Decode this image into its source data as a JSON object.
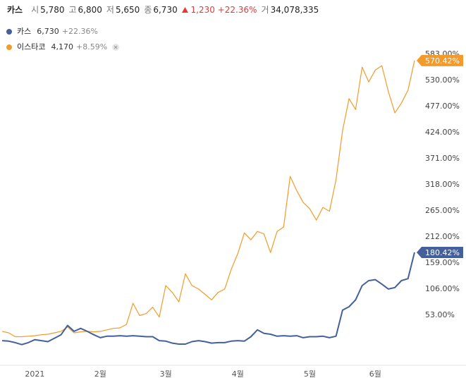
{
  "header": {
    "name": "카스",
    "stats": [
      {
        "label": "시",
        "value": "5,780"
      },
      {
        "label": "고",
        "value": "6,800"
      },
      {
        "label": "저",
        "value": "5,650"
      },
      {
        "label": "종",
        "value": "6,730"
      }
    ],
    "change": "1,230",
    "change_pct": "+22.36%",
    "volume_label": "거",
    "volume": "34,078,335"
  },
  "chart_data": {
    "type": "line",
    "categories": [
      null,
      null,
      null,
      null,
      null,
      "2021",
      null,
      null,
      null,
      null,
      null,
      null,
      null,
      null,
      null,
      "2월",
      null,
      null,
      null,
      null,
      null,
      null,
      null,
      null,
      null,
      "3월",
      null,
      null,
      null,
      null,
      null,
      null,
      null,
      null,
      null,
      null,
      "4월",
      null,
      null,
      null,
      null,
      null,
      null,
      null,
      null,
      null,
      null,
      "5월",
      null,
      null,
      null,
      null,
      null,
      null,
      null,
      null,
      null,
      "6월",
      null,
      null,
      null,
      null,
      null,
      null
    ],
    "series": [
      {
        "name": "이스타코",
        "legend_price": "4,170",
        "legend_change": "+8.59%",
        "color": "#f39a2b",
        "values": [
          20,
          17,
          9,
          9,
          10,
          11,
          13,
          14,
          17,
          20,
          29,
          17,
          19,
          20,
          19,
          20,
          23,
          26,
          27,
          34,
          77,
          52,
          56,
          69,
          49,
          113,
          99,
          80,
          137,
          113,
          106,
          95,
          84,
          99,
          106,
          146,
          178,
          220,
          206,
          223,
          218,
          180,
          223,
          232,
          335,
          306,
          282,
          269,
          246,
          272,
          264,
          328,
          428,
          493,
          471,
          557,
          527,
          551,
          560,
          507,
          464,
          484,
          510,
          570.42
        ],
        "value_labels": [
          null,
          null,
          null,
          null,
          null,
          null,
          null,
          null,
          null,
          null,
          null,
          null,
          null,
          null,
          null,
          null,
          null,
          null,
          null,
          null,
          null,
          null,
          null,
          null,
          null,
          null,
          null,
          null,
          null,
          null,
          null,
          null,
          null,
          null,
          null,
          null,
          null,
          null,
          null,
          null,
          null,
          null,
          null,
          null,
          null,
          null,
          null,
          null,
          null,
          null,
          null,
          null,
          null,
          null,
          null,
          null,
          null,
          null,
          null,
          null,
          null,
          null,
          null,
          "570.42%"
        ]
      },
      {
        "name": "카스",
        "legend_price": "6,730",
        "legend_change": "+22.36%",
        "color": "#44609c",
        "values": [
          1,
          0,
          -3,
          -7,
          -3,
          3,
          1,
          -1,
          6,
          13,
          32,
          20,
          26,
          20,
          13,
          7,
          10,
          10,
          11,
          10,
          11,
          10,
          9,
          9,
          1,
          0,
          -4,
          -6,
          -6,
          -1,
          1,
          -1,
          -4,
          -3,
          -3,
          0,
          1,
          0,
          9,
          23,
          16,
          14,
          10,
          11,
          10,
          11,
          7,
          9,
          9,
          10,
          7,
          10,
          63,
          70,
          84,
          113,
          123,
          125,
          116,
          106,
          109,
          123,
          127,
          180.42
        ],
        "value_labels": [
          null,
          null,
          null,
          null,
          null,
          null,
          null,
          null,
          null,
          null,
          null,
          null,
          null,
          null,
          null,
          null,
          null,
          null,
          null,
          null,
          null,
          null,
          null,
          null,
          null,
          null,
          null,
          null,
          null,
          null,
          null,
          null,
          null,
          null,
          null,
          null,
          null,
          null,
          null,
          null,
          null,
          null,
          null,
          null,
          null,
          null,
          null,
          null,
          null,
          null,
          null,
          null,
          null,
          null,
          null,
          null,
          null,
          null,
          null,
          null,
          null,
          null,
          null,
          "180.42%"
        ]
      }
    ],
    "ylim": [
      -49,
      586
    ],
    "yticks": [
      {
        "value": 53,
        "label": "53.00%"
      },
      {
        "value": 106,
        "label": "106.00%"
      },
      {
        "value": 159,
        "label": "159.00%"
      },
      {
        "value": 212,
        "label": "212.00%"
      },
      {
        "value": 265,
        "label": "265.00%"
      },
      {
        "value": 318,
        "label": "318.00%"
      },
      {
        "value": 371,
        "label": "371.00%"
      },
      {
        "value": 424,
        "label": "424.00%"
      },
      {
        "value": 477,
        "label": "477.00%"
      },
      {
        "value": 530,
        "label": "530.00%"
      },
      {
        "value": 583,
        "label": "583.00%"
      }
    ],
    "grid": false
  }
}
